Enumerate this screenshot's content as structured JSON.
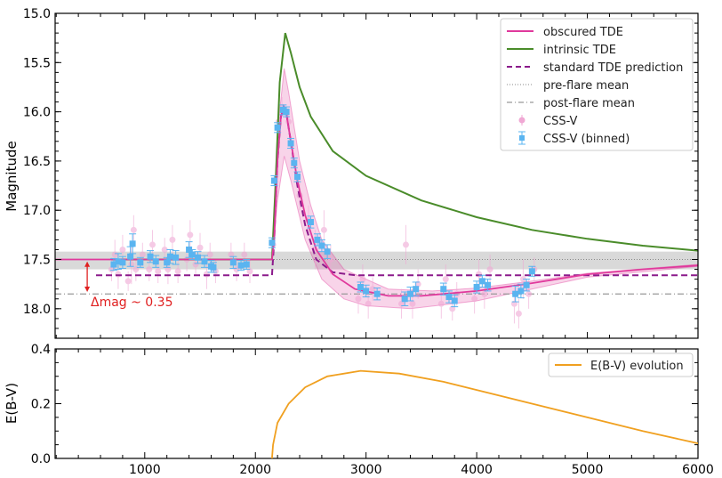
{
  "chart_data": [
    {
      "type": "line",
      "title": "",
      "xlabel": "",
      "ylabel": "Magnitude",
      "xlim": [
        190,
        6000
      ],
      "ylim": [
        18.3,
        15.0
      ],
      "y_inverted": true,
      "xticks": [
        1000,
        2000,
        3000,
        4000,
        5000,
        6000
      ],
      "yticks": [
        "15.0",
        "15.5",
        "16.0",
        "16.5",
        "17.0",
        "17.5",
        "18.0"
      ],
      "legend_position": "top-right",
      "legend": [
        "obscured TDE",
        "intrinsic TDE",
        "standard TDE prediction",
        "pre-flare mean",
        "post-flare mean",
        "CSS-V",
        "CSS-V (binned)"
      ],
      "colors": {
        "obscured": "#e0399c",
        "intrinsic": "#4a8c2a",
        "standard": "#8b1a8b",
        "pre": "#888888",
        "post": "#999999",
        "raw": "#f0a8d4",
        "binned": "#5ab4f0",
        "annot": "#e02020",
        "band": "#d9d9d9"
      },
      "pre_flare_mean": 17.5,
      "pre_flare_band": [
        17.42,
        17.6
      ],
      "post_flare_mean": 17.85,
      "annotation": {
        "text": "Δmag ~ 0.35",
        "x": 480,
        "from": 17.52,
        "to": 17.83
      },
      "series": {
        "obscured": [
          [
            190,
            17.5
          ],
          [
            2150,
            17.5
          ],
          [
            2170,
            17.3
          ],
          [
            2200,
            16.5
          ],
          [
            2230,
            16.05
          ],
          [
            2255,
            15.95
          ],
          [
            2280,
            16.02
          ],
          [
            2320,
            16.3
          ],
          [
            2380,
            16.7
          ],
          [
            2450,
            17.05
          ],
          [
            2550,
            17.4
          ],
          [
            2700,
            17.65
          ],
          [
            2900,
            17.8
          ],
          [
            3200,
            17.87
          ],
          [
            3500,
            17.87
          ],
          [
            4000,
            17.82
          ],
          [
            4500,
            17.74
          ],
          [
            5000,
            17.65
          ],
          [
            5500,
            17.6
          ],
          [
            6000,
            17.56
          ]
        ],
        "obscured_band_upper": [
          [
            2150,
            17.5
          ],
          [
            2200,
            16.2
          ],
          [
            2260,
            15.56
          ],
          [
            2300,
            15.8
          ],
          [
            2400,
            16.5
          ],
          [
            2500,
            16.95
          ],
          [
            2600,
            17.3
          ],
          [
            2800,
            17.6
          ],
          [
            3200,
            17.8
          ],
          [
            3600,
            17.82
          ],
          [
            4000,
            17.79
          ],
          [
            4500,
            17.72
          ],
          [
            5000,
            17.64
          ],
          [
            6000,
            17.55
          ]
        ],
        "obscured_band_lower": [
          [
            2150,
            17.5
          ],
          [
            2200,
            16.9
          ],
          [
            2260,
            16.45
          ],
          [
            2320,
            16.7
          ],
          [
            2450,
            17.3
          ],
          [
            2600,
            17.7
          ],
          [
            2800,
            17.9
          ],
          [
            3000,
            17.97
          ],
          [
            3400,
            18.0
          ],
          [
            4000,
            17.92
          ],
          [
            4500,
            17.8
          ],
          [
            5000,
            17.68
          ],
          [
            6000,
            17.57
          ]
        ],
        "intrinsic": [
          [
            700,
            17.5
          ],
          [
            2150,
            17.5
          ],
          [
            2180,
            16.8
          ],
          [
            2220,
            15.7
          ],
          [
            2270,
            15.2
          ],
          [
            2320,
            15.4
          ],
          [
            2400,
            15.75
          ],
          [
            2500,
            16.05
          ],
          [
            2700,
            16.4
          ],
          [
            3000,
            16.65
          ],
          [
            3500,
            16.9
          ],
          [
            4000,
            17.07
          ],
          [
            4500,
            17.2
          ],
          [
            5000,
            17.29
          ],
          [
            5500,
            17.36
          ],
          [
            6000,
            17.41
          ]
        ],
        "standard": [
          [
            560,
            17.66
          ],
          [
            2150,
            17.66
          ],
          [
            2170,
            17.3
          ],
          [
            2200,
            16.5
          ],
          [
            2230,
            16.05
          ],
          [
            2255,
            15.95
          ],
          [
            2280,
            16.02
          ],
          [
            2320,
            16.3
          ],
          [
            2380,
            16.75
          ],
          [
            2450,
            17.15
          ],
          [
            2550,
            17.5
          ],
          [
            2700,
            17.63
          ],
          [
            2900,
            17.66
          ],
          [
            6000,
            17.66
          ]
        ],
        "binned": [
          [
            720,
            17.55,
            0.06
          ],
          [
            760,
            17.52,
            0.08
          ],
          [
            800,
            17.53,
            0.06
          ],
          [
            870,
            17.47,
            0.1
          ],
          [
            890,
            17.34,
            0.1
          ],
          [
            960,
            17.53,
            0.05
          ],
          [
            1050,
            17.47,
            0.06
          ],
          [
            1100,
            17.52,
            0.06
          ],
          [
            1200,
            17.53,
            0.05
          ],
          [
            1230,
            17.47,
            0.07
          ],
          [
            1280,
            17.48,
            0.07
          ],
          [
            1400,
            17.4,
            0.08
          ],
          [
            1430,
            17.45,
            0.05
          ],
          [
            1480,
            17.48,
            0.06
          ],
          [
            1540,
            17.52,
            0.06
          ],
          [
            1600,
            17.57,
            0.06
          ],
          [
            1620,
            17.58,
            0.05
          ],
          [
            1800,
            17.53,
            0.06
          ],
          [
            1870,
            17.56,
            0.05
          ],
          [
            1920,
            17.55,
            0.05
          ],
          [
            2150,
            17.33,
            0.05
          ],
          [
            2170,
            16.7,
            0.05
          ],
          [
            2200,
            16.16,
            0.05
          ],
          [
            2250,
            15.98,
            0.05
          ],
          [
            2280,
            16.0,
            0.05
          ],
          [
            2320,
            16.32,
            0.05
          ],
          [
            2350,
            16.52,
            0.05
          ],
          [
            2380,
            16.66,
            0.05
          ],
          [
            2500,
            17.12,
            0.06
          ],
          [
            2560,
            17.3,
            0.06
          ],
          [
            2600,
            17.36,
            0.06
          ],
          [
            2650,
            17.42,
            0.07
          ],
          [
            2950,
            17.78,
            0.05
          ],
          [
            3000,
            17.82,
            0.06
          ],
          [
            3100,
            17.85,
            0.06
          ],
          [
            3350,
            17.9,
            0.07
          ],
          [
            3400,
            17.85,
            0.07
          ],
          [
            3450,
            17.8,
            0.07
          ],
          [
            3700,
            17.8,
            0.06
          ],
          [
            3750,
            17.88,
            0.06
          ],
          [
            3800,
            17.92,
            0.06
          ],
          [
            4000,
            17.78,
            0.06
          ],
          [
            4050,
            17.72,
            0.06
          ],
          [
            4100,
            17.76,
            0.06
          ],
          [
            4350,
            17.85,
            0.08
          ],
          [
            4400,
            17.82,
            0.07
          ],
          [
            4450,
            17.76,
            0.06
          ],
          [
            4500,
            17.62,
            0.05
          ]
        ],
        "raw": [
          [
            700,
            17.6,
            0.12
          ],
          [
            730,
            17.45,
            0.15
          ],
          [
            760,
            17.65,
            0.15
          ],
          [
            800,
            17.4,
            0.15
          ],
          [
            850,
            17.72,
            0.1
          ],
          [
            880,
            17.55,
            0.2
          ],
          [
            900,
            17.2,
            0.15
          ],
          [
            920,
            17.6,
            0.12
          ],
          [
            980,
            17.45,
            0.12
          ],
          [
            1040,
            17.6,
            0.12
          ],
          [
            1070,
            17.35,
            0.15
          ],
          [
            1120,
            17.62,
            0.12
          ],
          [
            1180,
            17.4,
            0.12
          ],
          [
            1210,
            17.6,
            0.15
          ],
          [
            1250,
            17.3,
            0.15
          ],
          [
            1300,
            17.62,
            0.12
          ],
          [
            1380,
            17.5,
            0.12
          ],
          [
            1410,
            17.25,
            0.15
          ],
          [
            1460,
            17.55,
            0.12
          ],
          [
            1500,
            17.38,
            0.15
          ],
          [
            1560,
            17.65,
            0.15
          ],
          [
            1590,
            17.45,
            0.12
          ],
          [
            1640,
            17.62,
            0.12
          ],
          [
            1780,
            17.45,
            0.12
          ],
          [
            1830,
            17.6,
            0.12
          ],
          [
            1900,
            17.45,
            0.12
          ],
          [
            1950,
            17.62,
            0.12
          ],
          [
            2160,
            17.35,
            0.1
          ],
          [
            2210,
            16.1,
            0.1
          ],
          [
            2240,
            15.95,
            0.1
          ],
          [
            2300,
            16.1,
            0.1
          ],
          [
            2400,
            16.85,
            0.15
          ],
          [
            2480,
            17.1,
            0.15
          ],
          [
            2540,
            17.4,
            0.2
          ],
          [
            2620,
            17.2,
            0.2
          ],
          [
            2680,
            17.5,
            0.15
          ],
          [
            2930,
            17.9,
            0.15
          ],
          [
            2970,
            17.7,
            0.15
          ],
          [
            3020,
            17.95,
            0.15
          ],
          [
            3060,
            17.8,
            0.12
          ],
          [
            3320,
            17.95,
            0.15
          ],
          [
            3360,
            17.35,
            0.2
          ],
          [
            3420,
            17.95,
            0.15
          ],
          [
            3470,
            17.75,
            0.15
          ],
          [
            3680,
            17.95,
            0.15
          ],
          [
            3720,
            17.7,
            0.15
          ],
          [
            3780,
            18.0,
            0.12
          ],
          [
            3820,
            17.85,
            0.12
          ],
          [
            3980,
            17.9,
            0.15
          ],
          [
            4020,
            17.65,
            0.15
          ],
          [
            4070,
            17.85,
            0.15
          ],
          [
            4120,
            17.6,
            0.15
          ],
          [
            4340,
            17.95,
            0.2
          ],
          [
            4380,
            18.05,
            0.15
          ],
          [
            4420,
            17.7,
            0.2
          ],
          [
            4470,
            17.85,
            0.15
          ],
          [
            4520,
            17.6,
            0.12
          ]
        ]
      }
    },
    {
      "type": "line",
      "xlabel": "",
      "ylabel": "E(B-V)",
      "xlim": [
        190,
        6000
      ],
      "ylim": [
        0.0,
        0.4
      ],
      "yticks": [
        "0.0",
        "0.2",
        "0.4"
      ],
      "legend_position": "top-right",
      "legend": [
        "E(B-V) evolution"
      ],
      "color": "#f0a020",
      "values": [
        [
          2150,
          0
        ],
        [
          2160,
          0.05
        ],
        [
          2200,
          0.13
        ],
        [
          2300,
          0.2
        ],
        [
          2450,
          0.26
        ],
        [
          2650,
          0.3
        ],
        [
          2950,
          0.32
        ],
        [
          3300,
          0.31
        ],
        [
          3700,
          0.28
        ],
        [
          4000,
          0.25
        ],
        [
          4500,
          0.2
        ],
        [
          5000,
          0.15
        ],
        [
          5500,
          0.1
        ],
        [
          6000,
          0.055
        ]
      ]
    }
  ]
}
